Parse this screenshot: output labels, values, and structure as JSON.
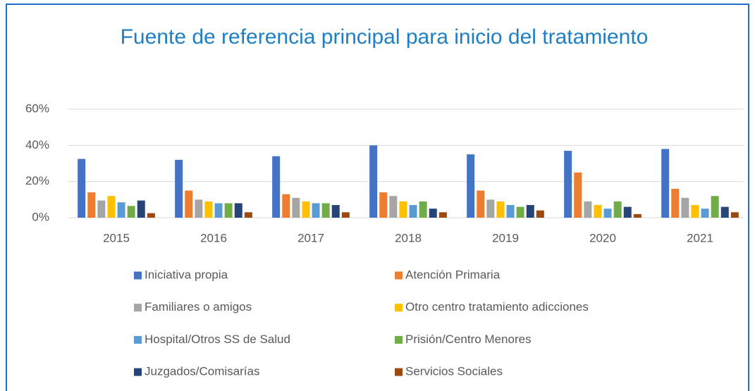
{
  "chart_data": {
    "type": "bar",
    "title": "Fuente de referencia principal para inicio del tratamiento",
    "categories": [
      "2015",
      "2016",
      "2017",
      "2018",
      "2019",
      "2020",
      "2021"
    ],
    "series": [
      {
        "name": "Iniciativa propia",
        "color": "#4472c4",
        "values": [
          32.5,
          32,
          34,
          40,
          35,
          37,
          38
        ]
      },
      {
        "name": "Atención Primaria",
        "color": "#ed7d31",
        "values": [
          14,
          15,
          13,
          14,
          15,
          25,
          16
        ]
      },
      {
        "name": "Familiares o amigos",
        "color": "#a5a5a5",
        "values": [
          9.5,
          10,
          11,
          12,
          10,
          9,
          11
        ]
      },
      {
        "name": "Otro centro tratamiento adicciones",
        "color": "#ffc000",
        "values": [
          12,
          9,
          9,
          9,
          9,
          7,
          7
        ]
      },
      {
        "name": "Hospital/Otros SS de Salud",
        "color": "#5b9bd5",
        "values": [
          8.5,
          8,
          8,
          7,
          7,
          5,
          5
        ]
      },
      {
        "name": "Prisión/Centro Menores",
        "color": "#70ad47",
        "values": [
          6.5,
          8,
          8,
          9,
          6,
          9,
          12
        ]
      },
      {
        "name": "Juzgados/Comisarías",
        "color": "#264478",
        "values": [
          9.5,
          8,
          7,
          5,
          7,
          6,
          6
        ]
      },
      {
        "name": "Servicios Sociales",
        "color": "#9e480e",
        "values": [
          2.5,
          3,
          3,
          3,
          4,
          2,
          3
        ]
      }
    ],
    "ylim": [
      0,
      60
    ],
    "yticks": [
      {
        "value": 0,
        "label": "0%"
      },
      {
        "value": 20,
        "label": "20%"
      },
      {
        "value": 40,
        "label": "40%"
      },
      {
        "value": 60,
        "label": "60%"
      }
    ],
    "grid": true,
    "legend": "bottom"
  }
}
